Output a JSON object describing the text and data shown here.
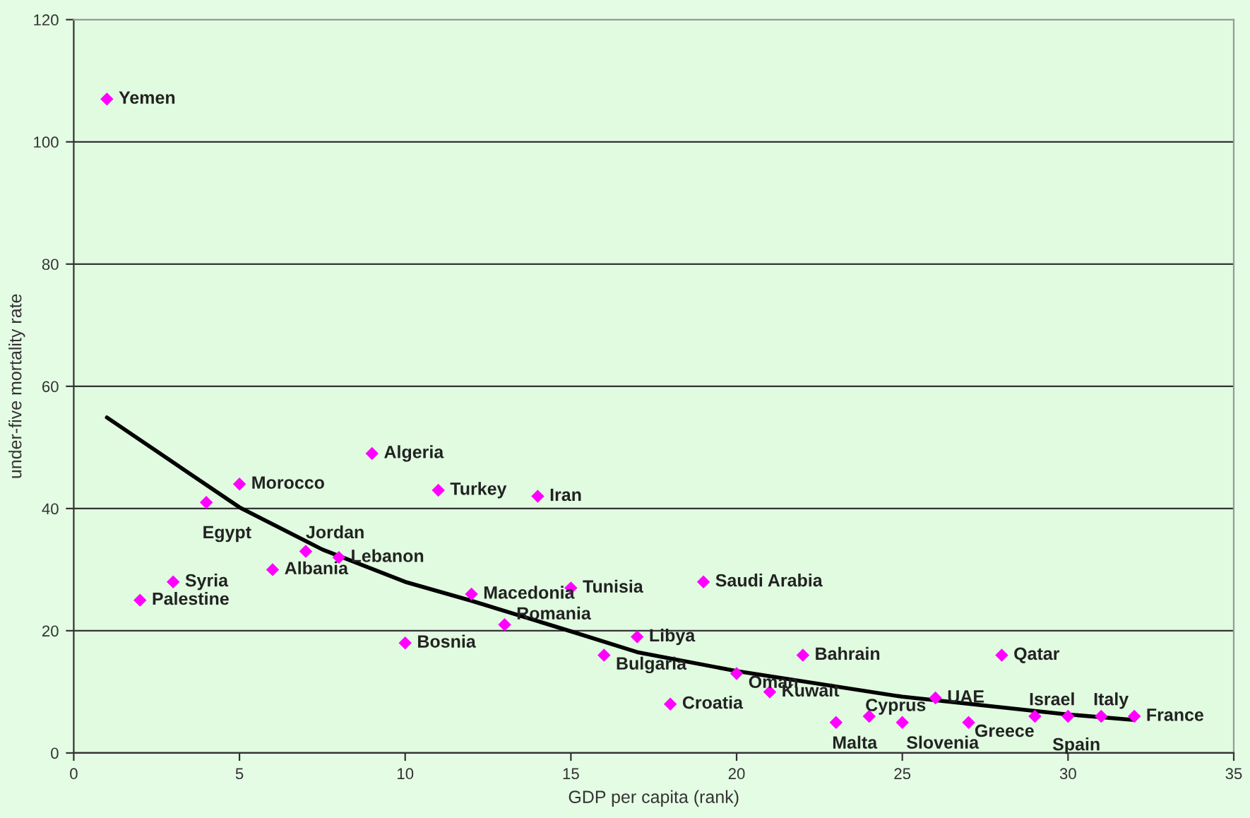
{
  "chart_data": {
    "type": "scatter",
    "xlabel": "GDP per capita (rank)",
    "ylabel": "under-five mortality rate",
    "xlim": [
      0,
      35
    ],
    "xticks": [
      0,
      5,
      10,
      15,
      20,
      25,
      30,
      35
    ],
    "ylim": [
      0,
      120
    ],
    "yticks": [
      0,
      20,
      40,
      60,
      80,
      100,
      120
    ],
    "grid": "y",
    "legend": false,
    "series": [
      {
        "color": "#ff00ff",
        "marker": "diamond",
        "x": [
          1,
          2,
          3,
          4,
          5,
          6,
          7,
          8,
          9,
          10,
          11,
          12,
          13,
          14,
          15,
          16,
          17,
          18,
          19,
          20,
          21,
          22,
          23,
          24,
          25,
          26,
          27,
          28,
          29,
          30,
          31,
          32
        ],
        "values": [
          107,
          25,
          28,
          41,
          44,
          30,
          33,
          32,
          49,
          18,
          43,
          26,
          21,
          42,
          27,
          16,
          19,
          8,
          28,
          13,
          10,
          16,
          5,
          6,
          5,
          9,
          5,
          16,
          6,
          6,
          6,
          6
        ]
      },
      {
        "type": "line",
        "color": "#000000",
        "marker": "none",
        "x": [
          1,
          5,
          7.5,
          10,
          12,
          15,
          17,
          20,
          25,
          30,
          32
        ],
        "values": [
          54.9,
          40.2,
          33.3,
          28.0,
          24.9,
          19.9,
          16.5,
          13.4,
          9.2,
          6.3,
          5.4
        ]
      }
    ],
    "annotations": [
      {
        "text": "Yemen",
        "x": 1,
        "y": 107
      },
      {
        "text": "Palestine",
        "x": 2,
        "y": 25
      },
      {
        "text": "Syria",
        "x": 3,
        "y": 28
      },
      {
        "text": "Egypt",
        "x": 4,
        "y": 41
      },
      {
        "text": "Morocco",
        "x": 5,
        "y": 44
      },
      {
        "text": "Albania",
        "x": 6,
        "y": 30
      },
      {
        "text": "Jordan",
        "x": 7,
        "y": 33
      },
      {
        "text": "Lebanon",
        "x": 8,
        "y": 32
      },
      {
        "text": "Algeria",
        "x": 9,
        "y": 49
      },
      {
        "text": "Bosnia",
        "x": 10,
        "y": 18
      },
      {
        "text": "Turkey",
        "x": 11,
        "y": 43
      },
      {
        "text": "Macedonia",
        "x": 12,
        "y": 26
      },
      {
        "text": "Romania",
        "x": 13,
        "y": 21
      },
      {
        "text": "Iran",
        "x": 14,
        "y": 42
      },
      {
        "text": "Tunisia",
        "x": 15,
        "y": 27
      },
      {
        "text": "Bulgaria",
        "x": 16,
        "y": 16
      },
      {
        "text": "Libya",
        "x": 17,
        "y": 19
      },
      {
        "text": "Croatia",
        "x": 18,
        "y": 8
      },
      {
        "text": "Saudi Arabia",
        "x": 19,
        "y": 28
      },
      {
        "text": "Oman",
        "x": 20,
        "y": 13
      },
      {
        "text": "Kuwait",
        "x": 21,
        "y": 10
      },
      {
        "text": "Bahrain",
        "x": 22,
        "y": 16
      },
      {
        "text": "Malta",
        "x": 23,
        "y": 5
      },
      {
        "text": "Cyprus",
        "x": 24,
        "y": 6
      },
      {
        "text": "Slovenia",
        "x": 25,
        "y": 5
      },
      {
        "text": "UAE",
        "x": 26,
        "y": 9
      },
      {
        "text": "Greece",
        "x": 27,
        "y": 5
      },
      {
        "text": "Qatar",
        "x": 28,
        "y": 16
      },
      {
        "text": "Israel",
        "x": 29,
        "y": 6
      },
      {
        "text": "Spain",
        "x": 30,
        "y": 6
      },
      {
        "text": "Italy",
        "x": 31,
        "y": 6
      },
      {
        "text": "France",
        "x": 32,
        "y": 6
      }
    ]
  }
}
